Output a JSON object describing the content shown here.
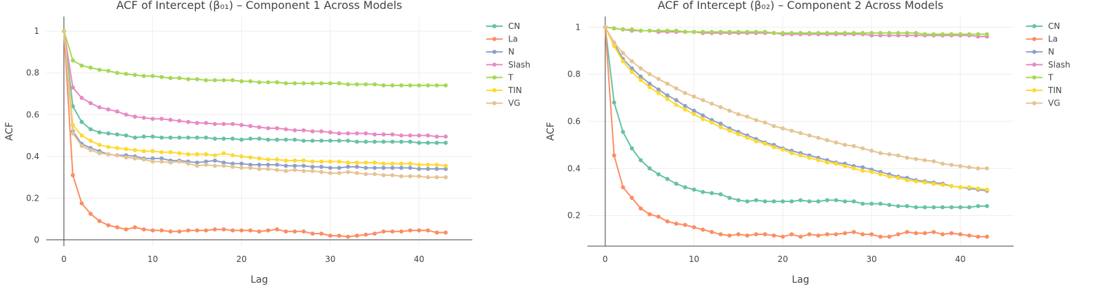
{
  "colors": {
    "CN": "#66c2a5",
    "La": "#fc8d62",
    "N": "#8da0cb",
    "Slash": "#e78ac3",
    "T": "#a6d854",
    "TIN": "#ffd92f",
    "VG": "#e5c494",
    "grid": "#eeeeee",
    "axis": "#444444"
  },
  "chart_data": [
    {
      "type": "line",
      "title": "ACF of Intercept (β₀₁) – Component 1 Across Models",
      "xlabel": "Lag",
      "ylabel": "ACF",
      "xlim": [
        -2,
        46
      ],
      "ylim": [
        -0.03,
        1.07
      ],
      "x_ticks": [
        0,
        10,
        20,
        30,
        40
      ],
      "y_ticks": [
        0,
        0.2,
        0.4,
        0.6,
        0.8,
        1
      ],
      "grid": true,
      "legend_position": "right",
      "series": [
        {
          "name": "CN",
          "values": [
            1,
            0.64,
            0.565,
            0.53,
            0.515,
            0.51,
            0.505,
            0.5,
            0.49,
            0.495,
            0.495,
            0.49,
            0.49,
            0.49,
            0.49,
            0.49,
            0.49,
            0.485,
            0.485,
            0.485,
            0.48,
            0.485,
            0.485,
            0.48,
            0.48,
            0.48,
            0.48,
            0.475,
            0.475,
            0.475,
            0.475,
            0.475,
            0.475,
            0.47,
            0.47,
            0.47,
            0.47,
            0.47,
            0.47,
            0.47,
            0.465,
            0.465,
            0.465,
            0.465
          ]
        },
        {
          "name": "La",
          "values": [
            1,
            0.31,
            0.175,
            0.125,
            0.09,
            0.07,
            0.06,
            0.05,
            0.06,
            0.05,
            0.045,
            0.045,
            0.04,
            0.04,
            0.045,
            0.045,
            0.045,
            0.05,
            0.05,
            0.045,
            0.045,
            0.045,
            0.04,
            0.045,
            0.05,
            0.04,
            0.04,
            0.04,
            0.03,
            0.03,
            0.02,
            0.02,
            0.015,
            0.02,
            0.025,
            0.03,
            0.04,
            0.04,
            0.04,
            0.045,
            0.045,
            0.045,
            0.035,
            0.035
          ]
        },
        {
          "name": "N",
          "values": [
            1,
            0.52,
            0.46,
            0.44,
            0.425,
            0.41,
            0.405,
            0.405,
            0.4,
            0.39,
            0.39,
            0.39,
            0.38,
            0.38,
            0.375,
            0.37,
            0.375,
            0.38,
            0.37,
            0.365,
            0.365,
            0.36,
            0.36,
            0.36,
            0.36,
            0.355,
            0.355,
            0.355,
            0.35,
            0.35,
            0.345,
            0.345,
            0.35,
            0.35,
            0.345,
            0.345,
            0.345,
            0.345,
            0.345,
            0.345,
            0.34,
            0.34,
            0.34,
            0.34
          ]
        },
        {
          "name": "Slash",
          "values": [
            1,
            0.73,
            0.68,
            0.655,
            0.635,
            0.625,
            0.615,
            0.6,
            0.59,
            0.585,
            0.58,
            0.58,
            0.575,
            0.57,
            0.565,
            0.56,
            0.56,
            0.555,
            0.555,
            0.555,
            0.55,
            0.545,
            0.54,
            0.535,
            0.535,
            0.53,
            0.525,
            0.525,
            0.52,
            0.52,
            0.515,
            0.51,
            0.51,
            0.51,
            0.51,
            0.505,
            0.505,
            0.505,
            0.5,
            0.5,
            0.5,
            0.5,
            0.495,
            0.495
          ]
        },
        {
          "name": "T",
          "values": [
            1,
            0.86,
            0.835,
            0.825,
            0.815,
            0.81,
            0.8,
            0.795,
            0.79,
            0.785,
            0.785,
            0.78,
            0.775,
            0.775,
            0.77,
            0.77,
            0.765,
            0.765,
            0.765,
            0.765,
            0.76,
            0.76,
            0.755,
            0.755,
            0.755,
            0.75,
            0.75,
            0.75,
            0.75,
            0.75,
            0.75,
            0.75,
            0.745,
            0.745,
            0.745,
            0.745,
            0.74,
            0.74,
            0.74,
            0.74,
            0.74,
            0.74,
            0.74,
            0.74
          ]
        },
        {
          "name": "TIN",
          "values": [
            1,
            0.55,
            0.5,
            0.475,
            0.455,
            0.445,
            0.44,
            0.435,
            0.43,
            0.425,
            0.425,
            0.42,
            0.42,
            0.415,
            0.41,
            0.41,
            0.41,
            0.405,
            0.415,
            0.405,
            0.4,
            0.395,
            0.39,
            0.385,
            0.385,
            0.38,
            0.38,
            0.38,
            0.375,
            0.375,
            0.375,
            0.375,
            0.37,
            0.37,
            0.37,
            0.37,
            0.365,
            0.365,
            0.365,
            0.365,
            0.36,
            0.36,
            0.36,
            0.355
          ]
        },
        {
          "name": "VG",
          "values": [
            1,
            0.51,
            0.45,
            0.43,
            0.415,
            0.41,
            0.405,
            0.395,
            0.39,
            0.385,
            0.375,
            0.375,
            0.37,
            0.375,
            0.365,
            0.355,
            0.36,
            0.355,
            0.355,
            0.35,
            0.345,
            0.345,
            0.34,
            0.34,
            0.335,
            0.33,
            0.335,
            0.33,
            0.33,
            0.325,
            0.32,
            0.32,
            0.325,
            0.32,
            0.315,
            0.315,
            0.31,
            0.31,
            0.305,
            0.305,
            0.305,
            0.3,
            0.3,
            0.3
          ]
        }
      ]
    },
    {
      "type": "line",
      "title": "ACF of Intercept (β₀₂) – Component 2 Across Models",
      "xlabel": "Lag",
      "ylabel": "ACF",
      "xlim": [
        -2,
        46
      ],
      "ylim": [
        0.07,
        1.045
      ],
      "x_ticks": [
        0,
        10,
        20,
        30,
        40
      ],
      "y_ticks": [
        0.2,
        0.4,
        0.6,
        0.8,
        1
      ],
      "grid": true,
      "legend_position": "right",
      "series": [
        {
          "name": "CN",
          "values": [
            1,
            0.68,
            0.555,
            0.485,
            0.435,
            0.4,
            0.375,
            0.355,
            0.335,
            0.32,
            0.31,
            0.3,
            0.295,
            0.29,
            0.275,
            0.265,
            0.26,
            0.265,
            0.26,
            0.26,
            0.26,
            0.26,
            0.265,
            0.26,
            0.26,
            0.265,
            0.265,
            0.26,
            0.26,
            0.25,
            0.25,
            0.25,
            0.245,
            0.24,
            0.24,
            0.235,
            0.235,
            0.235,
            0.235,
            0.235,
            0.235,
            0.235,
            0.24,
            0.24
          ]
        },
        {
          "name": "La",
          "values": [
            1,
            0.455,
            0.32,
            0.275,
            0.23,
            0.205,
            0.195,
            0.175,
            0.165,
            0.16,
            0.15,
            0.14,
            0.13,
            0.12,
            0.115,
            0.12,
            0.115,
            0.12,
            0.12,
            0.115,
            0.11,
            0.12,
            0.11,
            0.12,
            0.115,
            0.12,
            0.12,
            0.125,
            0.13,
            0.12,
            0.12,
            0.11,
            0.11,
            0.12,
            0.13,
            0.125,
            0.125,
            0.13,
            0.12,
            0.125,
            0.12,
            0.115,
            0.11,
            0.11
          ]
        },
        {
          "name": "N",
          "values": [
            1,
            0.93,
            0.865,
            0.825,
            0.79,
            0.76,
            0.735,
            0.71,
            0.69,
            0.665,
            0.645,
            0.625,
            0.605,
            0.59,
            0.57,
            0.555,
            0.54,
            0.525,
            0.51,
            0.5,
            0.485,
            0.475,
            0.465,
            0.455,
            0.445,
            0.435,
            0.425,
            0.42,
            0.41,
            0.405,
            0.395,
            0.385,
            0.375,
            0.365,
            0.36,
            0.35,
            0.345,
            0.34,
            0.335,
            0.325,
            0.32,
            0.315,
            0.31,
            0.305
          ]
        },
        {
          "name": "Slash",
          "values": [
            1,
            0.995,
            0.99,
            0.985,
            0.985,
            0.985,
            0.98,
            0.98,
            0.98,
            0.98,
            0.98,
            0.975,
            0.975,
            0.975,
            0.975,
            0.975,
            0.975,
            0.975,
            0.975,
            0.975,
            0.97,
            0.97,
            0.97,
            0.97,
            0.97,
            0.97,
            0.97,
            0.97,
            0.97,
            0.97,
            0.965,
            0.965,
            0.965,
            0.965,
            0.965,
            0.965,
            0.965,
            0.965,
            0.965,
            0.965,
            0.965,
            0.965,
            0.96,
            0.96
          ]
        },
        {
          "name": "T",
          "values": [
            1,
            0.995,
            0.99,
            0.99,
            0.985,
            0.985,
            0.985,
            0.985,
            0.985,
            0.98,
            0.98,
            0.98,
            0.98,
            0.98,
            0.98,
            0.98,
            0.98,
            0.98,
            0.98,
            0.975,
            0.975,
            0.975,
            0.975,
            0.975,
            0.975,
            0.975,
            0.975,
            0.975,
            0.975,
            0.975,
            0.975,
            0.975,
            0.975,
            0.975,
            0.975,
            0.975,
            0.97,
            0.97,
            0.97,
            0.97,
            0.97,
            0.97,
            0.97,
            0.97
          ]
        },
        {
          "name": "TIN",
          "values": [
            1,
            0.92,
            0.855,
            0.81,
            0.775,
            0.745,
            0.72,
            0.695,
            0.67,
            0.65,
            0.63,
            0.61,
            0.595,
            0.575,
            0.56,
            0.545,
            0.53,
            0.515,
            0.505,
            0.49,
            0.48,
            0.465,
            0.455,
            0.445,
            0.435,
            0.425,
            0.42,
            0.41,
            0.4,
            0.39,
            0.385,
            0.375,
            0.365,
            0.36,
            0.35,
            0.345,
            0.34,
            0.335,
            0.33,
            0.325,
            0.32,
            0.32,
            0.315,
            0.31
          ]
        },
        {
          "name": "VG",
          "values": [
            1,
            0.935,
            0.89,
            0.855,
            0.825,
            0.8,
            0.78,
            0.76,
            0.74,
            0.72,
            0.705,
            0.69,
            0.675,
            0.66,
            0.645,
            0.63,
            0.62,
            0.605,
            0.595,
            0.58,
            0.57,
            0.56,
            0.55,
            0.54,
            0.53,
            0.52,
            0.51,
            0.5,
            0.495,
            0.485,
            0.475,
            0.465,
            0.46,
            0.455,
            0.445,
            0.44,
            0.435,
            0.43,
            0.42,
            0.415,
            0.41,
            0.405,
            0.4,
            0.4
          ]
        }
      ]
    }
  ]
}
